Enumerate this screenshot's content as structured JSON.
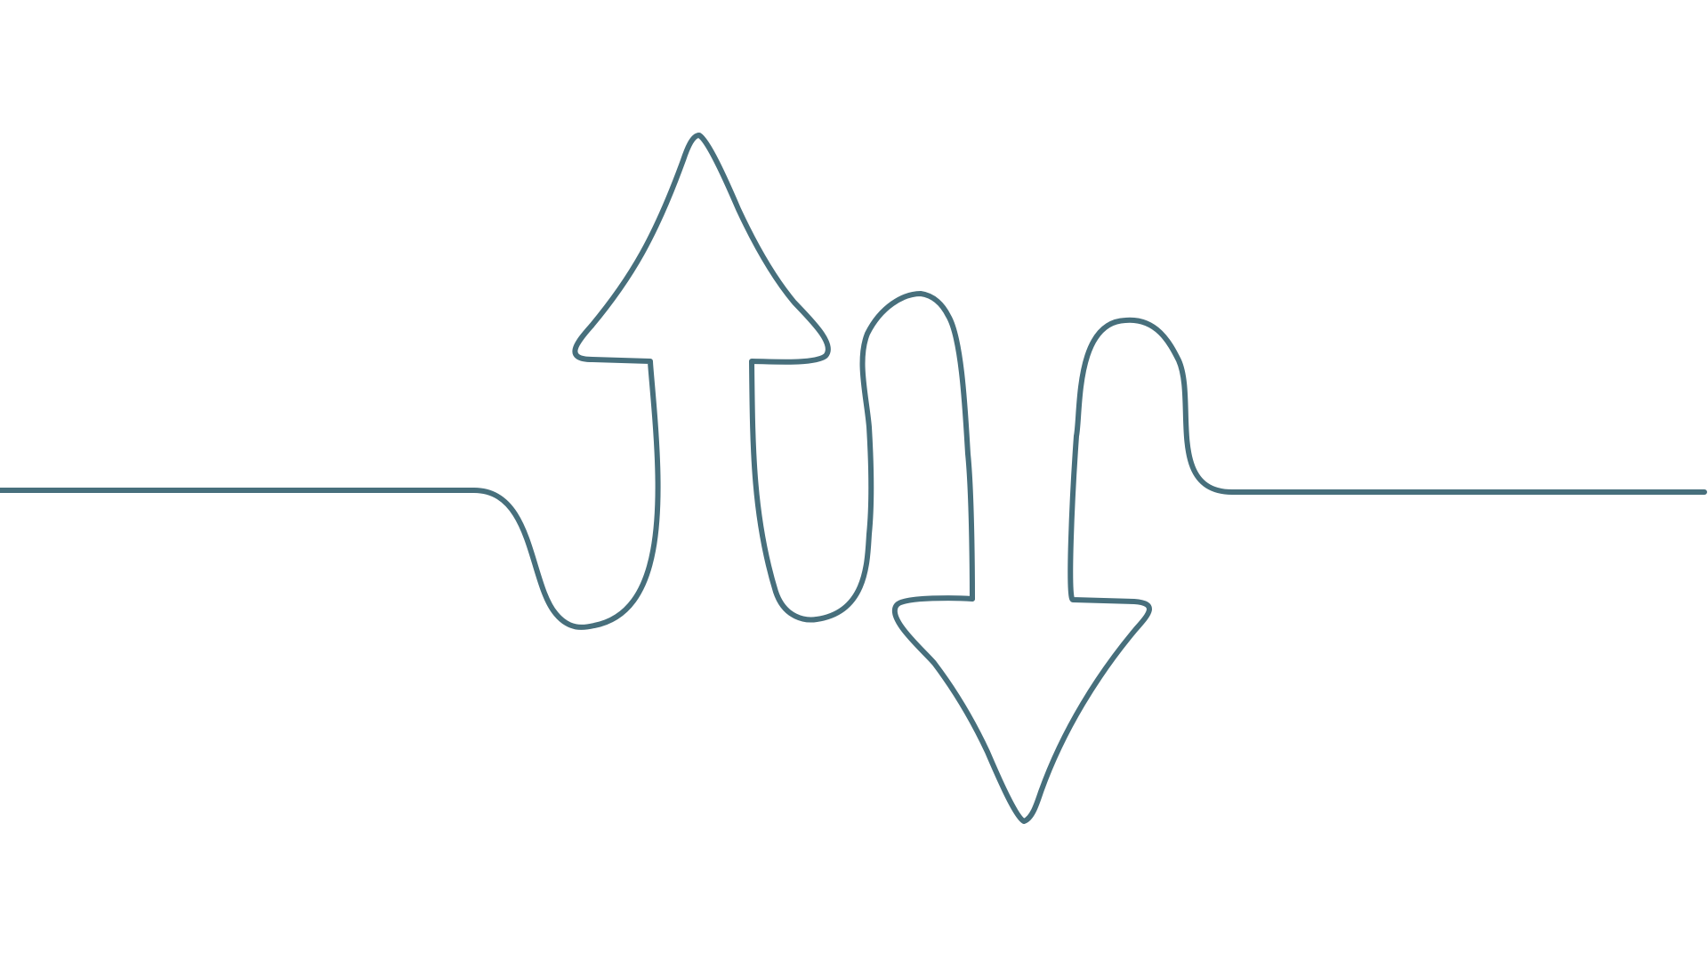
{
  "illustration": {
    "subject": "single-line-drawing-up-and-down-arrows",
    "stroke_color": "#476f7c",
    "background_color": "#ffffff"
  }
}
